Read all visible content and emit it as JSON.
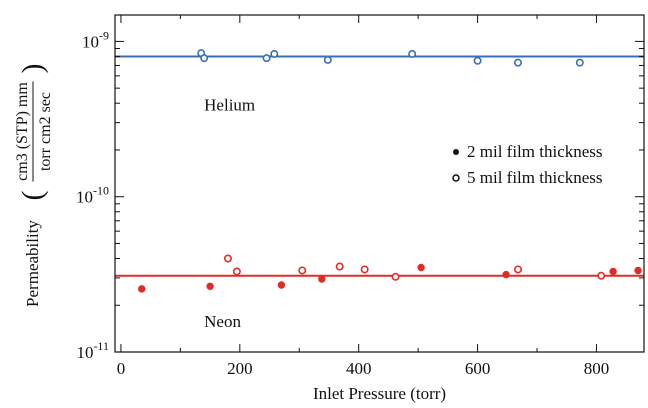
{
  "chart_data": {
    "type": "scatter",
    "xlabel": "Inlet Pressure (torr)",
    "ylabel_prefix": "Permeability",
    "ylabel_numerator": "cm3 (STP) mm",
    "ylabel_denominator": "torr cm2 sec",
    "xlim": [
      -10,
      880
    ],
    "ylim_log10": [
      -11,
      -8.83
    ],
    "log_y": true,
    "x_ticks": [
      0,
      200,
      400,
      600,
      800
    ],
    "x_tick_labels": [
      "0",
      "200",
      "400",
      "600",
      "800"
    ],
    "y_ticks_log10": [
      -11,
      -10,
      -9
    ],
    "y_tick_labels": [
      {
        "base": "10",
        "exp": "-11"
      },
      {
        "base": "10",
        "exp": "-10"
      },
      {
        "base": "10",
        "exp": "-9"
      }
    ],
    "legend": {
      "placement": "right",
      "entries": [
        {
          "marker": "filled",
          "label": "2 mil film thickness"
        },
        {
          "marker": "open",
          "label": "5 mil film thickness"
        }
      ]
    },
    "annotations": [
      {
        "text": "Helium",
        "x": 140,
        "y": 3.6e-10
      },
      {
        "text": "Neon",
        "x": 140,
        "y": 1.45e-11
      }
    ],
    "fit_lines": [
      {
        "label": "Helium",
        "y": 8e-10,
        "color": "#3a6fb5"
      },
      {
        "label": "Neon",
        "y": 3.1e-11,
        "color": "#e32b26"
      }
    ],
    "series": [
      {
        "gas": "Helium",
        "thickness": "5 mil",
        "color": "#3a6fb5",
        "marker": "open",
        "points": [
          {
            "x": 135,
            "y": 8.4e-10
          },
          {
            "x": 140,
            "y": 7.8e-10
          },
          {
            "x": 245,
            "y": 7.8e-10
          },
          {
            "x": 258,
            "y": 8.3e-10
          },
          {
            "x": 348,
            "y": 7.6e-10
          },
          {
            "x": 490,
            "y": 8.3e-10
          },
          {
            "x": 600,
            "y": 7.5e-10
          },
          {
            "x": 668,
            "y": 7.3e-10
          },
          {
            "x": 772,
            "y": 7.3e-10
          }
        ]
      },
      {
        "gas": "Neon",
        "thickness": "5 mil",
        "color": "#e32b26",
        "marker": "open",
        "points": [
          {
            "x": 180,
            "y": 4e-11
          },
          {
            "x": 195,
            "y": 3.3e-11
          },
          {
            "x": 305,
            "y": 3.35e-11
          },
          {
            "x": 368,
            "y": 3.55e-11
          },
          {
            "x": 410,
            "y": 3.4e-11
          },
          {
            "x": 462,
            "y": 3.05e-11
          },
          {
            "x": 668,
            "y": 3.4e-11
          },
          {
            "x": 808,
            "y": 3.1e-11
          }
        ]
      },
      {
        "gas": "Neon",
        "thickness": "2 mil",
        "color": "#e32b26",
        "marker": "filled",
        "points": [
          {
            "x": 35,
            "y": 2.55e-11
          },
          {
            "x": 150,
            "y": 2.65e-11
          },
          {
            "x": 270,
            "y": 2.7e-11
          },
          {
            "x": 338,
            "y": 2.95e-11
          },
          {
            "x": 505,
            "y": 3.5e-11
          },
          {
            "x": 648,
            "y": 3.15e-11
          },
          {
            "x": 828,
            "y": 3.3e-11
          },
          {
            "x": 870,
            "y": 3.35e-11
          }
        ]
      }
    ]
  }
}
